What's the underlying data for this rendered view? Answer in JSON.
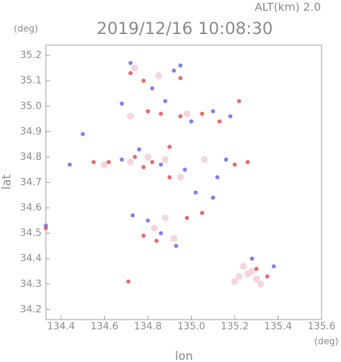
{
  "chart_data": {
    "type": "scatter",
    "title": "2019/12/16 10:08:30",
    "annotation": "ALT(km) 2.0",
    "y_unit": "(deg)",
    "x_unit": "(deg)",
    "xlabel": "lon",
    "ylabel": "lat",
    "xlim": [
      134.33,
      135.6
    ],
    "ylim": [
      34.16,
      35.24
    ],
    "xticks": [
      134.4,
      134.6,
      134.8,
      {
        "value": 135,
        "label": "135.0"
      },
      135.2,
      135.4,
      135.6
    ],
    "yticks": [
      34.2,
      34.3,
      34.4,
      34.5,
      34.6,
      34.7,
      34.8,
      34.9,
      {
        "value": 35,
        "label": "35.0"
      },
      35.1,
      35.2
    ],
    "series": [
      {
        "color": "#f2cfd8",
        "x": [
          134.74,
          134.85,
          134.72,
          134.98,
          134.6,
          134.72,
          134.8,
          134.88,
          134.95,
          134.83,
          134.92,
          134.88,
          135.22,
          135.26,
          135.3,
          135.24,
          135.32,
          135.2,
          135.28,
          135.06
        ],
        "y": [
          35.15,
          35.12,
          34.96,
          34.97,
          34.77,
          34.78,
          34.8,
          34.79,
          34.72,
          34.52,
          34.48,
          34.56,
          34.33,
          34.34,
          34.32,
          34.37,
          34.3,
          34.31,
          34.35,
          34.79
        ]
      },
      {
        "color": "#6a6af0",
        "x": [
          134.72,
          134.92,
          134.82,
          134.88,
          135,
          135.1,
          135.18,
          134.5,
          134.44,
          134.68,
          134.76,
          134.86,
          134.97,
          135.12,
          135.16,
          134.73,
          134.8,
          134.86,
          134.93,
          135.02,
          135.1,
          135.38,
          135.28,
          134.33,
          134.95,
          134.68
        ],
        "y": [
          35.17,
          35.14,
          35.07,
          35.02,
          34.94,
          34.98,
          34.96,
          34.89,
          34.77,
          34.79,
          34.83,
          34.77,
          34.75,
          34.72,
          34.79,
          34.57,
          34.55,
          34.5,
          34.45,
          34.66,
          34.64,
          34.37,
          34.4,
          34.53,
          35.16,
          35.01
        ]
      },
      {
        "color": "#e85050",
        "x": [
          134.72,
          134.78,
          134.8,
          134.86,
          134.95,
          135.05,
          135.13,
          135.22,
          134.55,
          134.62,
          134.74,
          134.78,
          134.82,
          134.9,
          135.2,
          135.26,
          134.78,
          134.84,
          134.98,
          135.05,
          135.3,
          135.35,
          134.71,
          134.33,
          134.95,
          134.9
        ],
        "y": [
          35.13,
          35.1,
          34.98,
          34.97,
          34.96,
          34.97,
          34.94,
          35.02,
          34.78,
          34.78,
          34.8,
          34.76,
          34.78,
          34.72,
          34.77,
          34.78,
          34.49,
          34.47,
          34.56,
          34.58,
          34.36,
          34.33,
          34.31,
          34.52,
          35.11,
          34.84
        ]
      }
    ]
  }
}
